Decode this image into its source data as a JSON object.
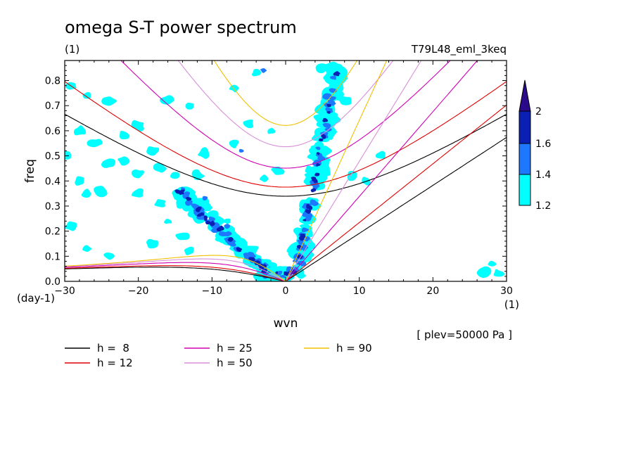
{
  "chart_data": {
    "type": "contour",
    "title": "omega S-T power spectrum",
    "subtitle_left": "(1)",
    "subtitle_right": "T79L48_eml_3keq",
    "xlabel": "wvn",
    "ylabel": "freq",
    "x_unit": "(1)",
    "y_unit": "(day-1)",
    "annotation": "[ plev=50000 Pa ]",
    "xlim": [
      -30,
      30
    ],
    "ylim": [
      0,
      0.88
    ],
    "xticks": [
      -30,
      -20,
      -10,
      0,
      10,
      20,
      30
    ],
    "yticks": [
      0.0,
      0.1,
      0.2,
      0.3,
      0.4,
      0.5,
      0.6,
      0.7,
      0.8
    ],
    "ytick_labels": [
      "0.0",
      "0.1",
      "0.2",
      "0.3",
      "0.4",
      "0.5",
      "0.6",
      "0.7",
      "0.8"
    ],
    "colorbar": {
      "levels": [
        1.2,
        1.4,
        1.6,
        2
      ],
      "level_labels": [
        "1.2",
        "1.4",
        "1.6",
        "2"
      ],
      "colors": [
        "#00ffff",
        "#1e78ff",
        "#0a1fb4",
        "#2a0a8a"
      ]
    },
    "equivalent_depths": [
      {
        "name": "h =  8",
        "h": 8,
        "color": "#000000"
      },
      {
        "name": "h = 12",
        "h": 12,
        "color": "#e00000"
      },
      {
        "name": "h = 25",
        "h": 25,
        "color": "#d000b0"
      },
      {
        "name": "h = 50",
        "h": 50,
        "color": "#d890d8"
      },
      {
        "name": "h = 90",
        "h": 90,
        "color": "#f0c000"
      }
    ],
    "spectral_peaks": [
      {
        "x": -12.5,
        "y": 0.3,
        "level": 2
      },
      {
        "x": -9,
        "y": 0.2,
        "level": 2
      },
      {
        "x": -3,
        "y": 0.06,
        "level": 2
      },
      {
        "x": 3.5,
        "y": 0.25,
        "level": 2
      },
      {
        "x": 5,
        "y": 0.45,
        "level": 2
      },
      {
        "x": 6.5,
        "y": 0.8,
        "level": 2
      }
    ]
  }
}
